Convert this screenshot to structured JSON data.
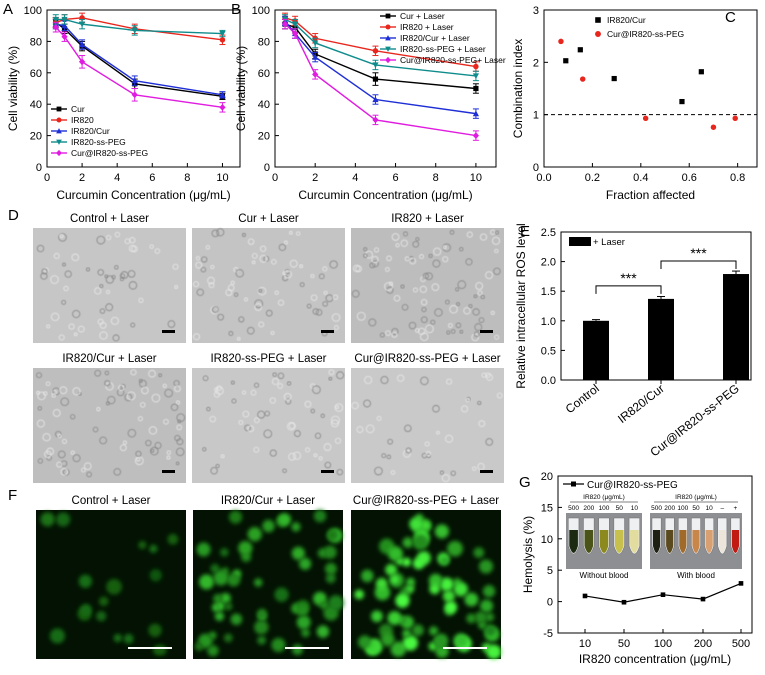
{
  "panels": {
    "A": {
      "letter": "A",
      "chart_data": {
        "type": "line",
        "xlabel": "Curcumin Concentration (μg/mL)",
        "ylabel": "Cell viability (%)",
        "xlim": [
          0,
          11
        ],
        "ylim": [
          0,
          100
        ],
        "xticks": [
          0,
          2,
          4,
          6,
          8,
          10
        ],
        "yticks": [
          0,
          20,
          40,
          60,
          80,
          100
        ],
        "x": [
          0.5,
          1,
          2,
          5,
          10
        ],
        "legend": "bottom-left",
        "series": [
          {
            "name": "Cur",
            "color": "#000000",
            "marker": "square",
            "values": [
              92,
              88,
              77,
              53,
              45
            ],
            "err": [
              3,
              3,
              3,
              3,
              2
            ]
          },
          {
            "name": "IR820",
            "color": "#e8261d",
            "marker": "circle",
            "values": [
              92,
              94,
              95,
              88,
              81
            ],
            "err": [
              3,
              3,
              3,
              3,
              3
            ]
          },
          {
            "name": "IR820/Cur",
            "color": "#1f2fd6",
            "marker": "triangle-up",
            "values": [
              91,
              90,
              78,
              55,
              46
            ],
            "err": [
              3,
              3,
              3,
              3,
              2
            ]
          },
          {
            "name": "IR820-ss-PEG",
            "color": "#0f8c8c",
            "marker": "triangle-down",
            "values": [
              94,
              94,
              91,
              87,
              85
            ],
            "err": [
              3,
              3,
              3,
              3,
              2
            ]
          },
          {
            "name": "Cur@IR820-ss-PEG",
            "color": "#e01ce0",
            "marker": "diamond",
            "values": [
              89,
              83,
              67,
              46,
              38
            ],
            "err": [
              3,
              3,
              4,
              4,
              3
            ]
          }
        ]
      }
    },
    "B": {
      "letter": "B",
      "chart_data": {
        "type": "line",
        "xlabel": "Curcumin Concentration (μg/mL)",
        "ylabel": "Cell viability (%)",
        "xlim": [
          0,
          11
        ],
        "ylim": [
          0,
          100
        ],
        "xticks": [
          0,
          2,
          4,
          6,
          8,
          10
        ],
        "yticks": [
          0,
          20,
          40,
          60,
          80,
          100
        ],
        "x": [
          0.5,
          1,
          2,
          5,
          10
        ],
        "legend": "top-right",
        "series": [
          {
            "name": "Cur + Laser",
            "color": "#000000",
            "marker": "square",
            "values": [
              91,
              89,
              72,
              56,
              50
            ],
            "err": [
              3,
              3,
              3,
              4,
              3
            ]
          },
          {
            "name": "IR820 + Laser",
            "color": "#e8261d",
            "marker": "circle",
            "values": [
              95,
              93,
              82,
              74,
              64
            ],
            "err": [
              3,
              3,
              3,
              3,
              3
            ]
          },
          {
            "name": "IR820/Cur + Laser",
            "color": "#1f2fd6",
            "marker": "triangle-up",
            "values": [
              93,
              85,
              70,
              43,
              34
            ],
            "err": [
              3,
              3,
              3,
              3,
              3
            ]
          },
          {
            "name": "IR820-ss-PEG + Laser",
            "color": "#0f8c8c",
            "marker": "triangle-down",
            "values": [
              94,
              91,
              79,
              65,
              58
            ],
            "err": [
              3,
              3,
              3,
              3,
              3
            ]
          },
          {
            "name": "Cur@IR820-ss-PEG+ Laser",
            "color": "#e01ce0",
            "marker": "diamond",
            "values": [
              91,
              85,
              59,
              30,
              20
            ],
            "err": [
              3,
              3,
              3,
              3,
              3
            ]
          }
        ]
      }
    },
    "C": {
      "letter": "C",
      "chart_data": {
        "type": "scatter",
        "xlabel": "Fraction affected",
        "ylabel": "Combination index",
        "xlim": [
          0,
          0.88
        ],
        "ylim": [
          0,
          3
        ],
        "xticks": [
          0.0,
          0.2,
          0.4,
          0.6,
          0.8
        ],
        "yticks": [
          0,
          1,
          2,
          3
        ],
        "reference_line_y": 1,
        "legend": "top-right",
        "series": [
          {
            "name": "IR820/Cur",
            "color": "#000000",
            "marker": "square",
            "x": [
              0.09,
              0.15,
              0.29,
              0.57,
              0.65
            ],
            "y": [
              2.03,
              2.24,
              1.69,
              1.25,
              1.82
            ]
          },
          {
            "name": "Cur@IR820-ss-PEG",
            "color": "#e8261d",
            "marker": "circle",
            "x": [
              0.07,
              0.16,
              0.42,
              0.7,
              0.79
            ],
            "y": [
              2.4,
              1.68,
              0.93,
              0.76,
              0.93
            ]
          }
        ]
      }
    },
    "D": {
      "letter": "D",
      "images": [
        {
          "caption": "Control + Laser",
          "tone": "#c6c6c6"
        },
        {
          "caption": "Cur + Laser",
          "tone": "#c4c4c4"
        },
        {
          "caption": "IR820 + Laser",
          "tone": "#bdbdbd"
        },
        {
          "caption": "IR820/Cur + Laser",
          "tone": "#bebebe"
        },
        {
          "caption": "IR820-ss-PEG + Laser",
          "tone": "#c8c8c8"
        },
        {
          "caption": "Cur@IR820-ss-PEG + Laser",
          "tone": "#c9c9c9"
        }
      ]
    },
    "E": {
      "letter": "E",
      "chart_data": {
        "type": "bar",
        "categories": [
          "Control",
          "IR820/Cur",
          "Cur@IR820-ss-PEG"
        ],
        "values": [
          1.0,
          1.37,
          1.79
        ],
        "err": [
          0.02,
          0.04,
          0.05
        ],
        "ylabel": "Relative intracellular ROS level",
        "ylim": [
          0,
          2.5
        ],
        "yticks": [
          0.0,
          0.5,
          1.0,
          1.5,
          2.0,
          2.5
        ],
        "legend": [
          {
            "name": "+ Laser",
            "color": "#000000"
          }
        ],
        "significance": [
          {
            "from": 0,
            "to": 1,
            "label": "***"
          },
          {
            "from": 1,
            "to": 2,
            "label": "***"
          }
        ]
      }
    },
    "F": {
      "letter": "F",
      "images": [
        {
          "caption": "Control + Laser",
          "intensity": 0.25
        },
        {
          "caption": "IR820/Cur + Laser",
          "intensity": 0.65
        },
        {
          "caption": "Cur@IR820-ss-PEG + Laser",
          "intensity": 1.0
        }
      ]
    },
    "G": {
      "letter": "G",
      "chart_data": {
        "type": "line",
        "categories": [
          "10",
          "50",
          "100",
          "200",
          "500"
        ],
        "values": [
          0.9,
          -0.1,
          1.1,
          0.4,
          2.9
        ],
        "xlabel": "IR820 concentration (μg/mL)",
        "ylabel": "Hemolysis (%)",
        "ylim": [
          -5,
          20
        ],
        "yticks": [
          -5,
          0,
          5,
          10,
          15,
          20
        ],
        "legend": [
          {
            "name": "Cur@IR820-ss-PEG",
            "color": "#000000"
          }
        ]
      },
      "inset": {
        "left": {
          "title": "IR820 (μg/mL)",
          "labels": [
            "500",
            "200",
            "100",
            "50",
            "10"
          ],
          "caption": "Without blood",
          "colors": [
            "#1c2a12",
            "#4a5418",
            "#8c8a1e",
            "#c8c04c",
            "#e2dd9e"
          ]
        },
        "right": {
          "title": "IR820 (μg/mL)",
          "labels": [
            "500",
            "200",
            "100",
            "50",
            "10",
            "–",
            "+"
          ],
          "caption": "With blood",
          "colors": [
            "#1e2014",
            "#5a4a1e",
            "#a06a2a",
            "#c8864a",
            "#d8a070",
            "#ece6da",
            "#c01a12"
          ]
        }
      }
    }
  }
}
